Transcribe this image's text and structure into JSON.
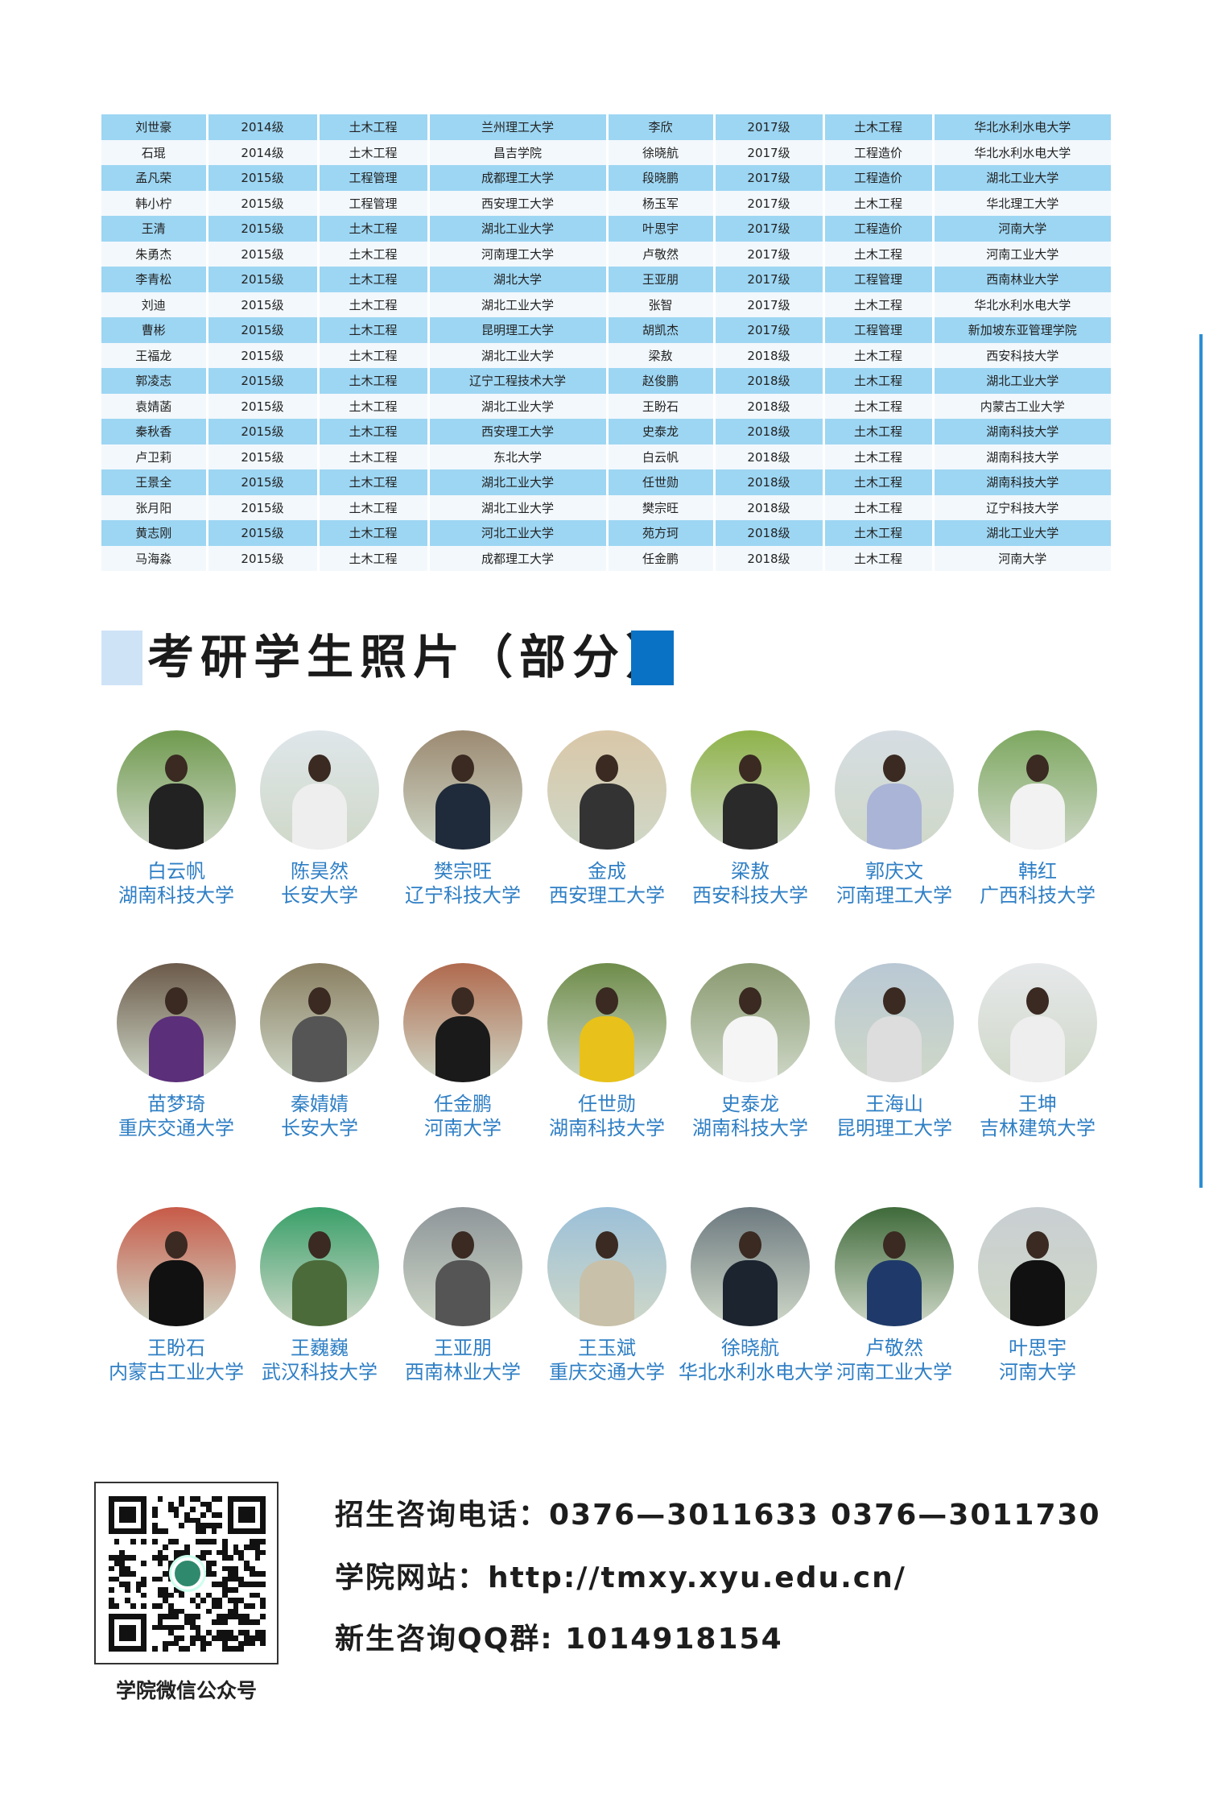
{
  "table": {
    "rows": [
      [
        "刘世豪",
        "2014级",
        "土木工程",
        "兰州理工大学",
        "李欣",
        "2017级",
        "土木工程",
        "华北水利水电大学"
      ],
      [
        "石琨",
        "2014级",
        "土木工程",
        "昌吉学院",
        "徐晓航",
        "2017级",
        "工程造价",
        "华北水利水电大学"
      ],
      [
        "孟凡荣",
        "2015级",
        "工程管理",
        "成都理工大学",
        "段晓鹏",
        "2017级",
        "工程造价",
        "湖北工业大学"
      ],
      [
        "韩小柠",
        "2015级",
        "工程管理",
        "西安理工大学",
        "杨玉军",
        "2017级",
        "土木工程",
        "华北理工大学"
      ],
      [
        "王清",
        "2015级",
        "土木工程",
        "湖北工业大学",
        "叶思宇",
        "2017级",
        "工程造价",
        "河南大学"
      ],
      [
        "朱勇杰",
        "2015级",
        "土木工程",
        "河南理工大学",
        "卢敬然",
        "2017级",
        "土木工程",
        "河南工业大学"
      ],
      [
        "李青松",
        "2015级",
        "土木工程",
        "湖北大学",
        "王亚朋",
        "2017级",
        "工程管理",
        "西南林业大学"
      ],
      [
        "刘迪",
        "2015级",
        "土木工程",
        "湖北工业大学",
        "张智",
        "2017级",
        "土木工程",
        "华北水利水电大学"
      ],
      [
        "曹彬",
        "2015级",
        "土木工程",
        "昆明理工大学",
        "胡凯杰",
        "2017级",
        "工程管理",
        "新加坡东亚管理学院"
      ],
      [
        "王福龙",
        "2015级",
        "土木工程",
        "湖北工业大学",
        "梁敖",
        "2018级",
        "土木工程",
        "西安科技大学"
      ],
      [
        "郭凌志",
        "2015级",
        "土木工程",
        "辽宁工程技术大学",
        "赵俊鹏",
        "2018级",
        "土木工程",
        "湖北工业大学"
      ],
      [
        "袁婧菡",
        "2015级",
        "土木工程",
        "湖北工业大学",
        "王盼石",
        "2018级",
        "土木工程",
        "内蒙古工业大学"
      ],
      [
        "秦秋香",
        "2015级",
        "土木工程",
        "西安理工大学",
        "史泰龙",
        "2018级",
        "土木工程",
        "湖南科技大学"
      ],
      [
        "卢卫莉",
        "2015级",
        "土木工程",
        "东北大学",
        "白云帆",
        "2018级",
        "土木工程",
        "湖南科技大学"
      ],
      [
        "王景全",
        "2015级",
        "土木工程",
        "湖北工业大学",
        "任世勋",
        "2018级",
        "土木工程",
        "湖南科技大学"
      ],
      [
        "张月阳",
        "2015级",
        "土木工程",
        "湖北工业大学",
        "樊宗旺",
        "2018级",
        "土木工程",
        "辽宁科技大学"
      ],
      [
        "黄志刚",
        "2015级",
        "土木工程",
        "河北工业大学",
        "苑方珂",
        "2018级",
        "土木工程",
        "湖北工业大学"
      ],
      [
        "马海淼",
        "2015级",
        "土木工程",
        "成都理工大学",
        "任金鹏",
        "2018级",
        "土木工程",
        "河南大学"
      ]
    ],
    "colors": {
      "stripe": "#9dd6f3",
      "alt": "#f3f8fc"
    }
  },
  "section": {
    "title": "考研学生照片（部分）",
    "accent_light": "#cfe3f7",
    "accent_dark": "#0a72c4"
  },
  "photos": [
    {
      "name": "白云帆",
      "school": "湖南科技大学"
    },
    {
      "name": "陈昊然",
      "school": "长安大学"
    },
    {
      "name": "樊宗旺",
      "school": "辽宁科技大学"
    },
    {
      "name": "金成",
      "school": "西安理工大学"
    },
    {
      "name": "梁敖",
      "school": "西安科技大学"
    },
    {
      "name": "郭庆文",
      "school": "河南理工大学"
    },
    {
      "name": "韩红",
      "school": "广西科技大学"
    },
    {
      "name": "苗梦琦",
      "school": "重庆交通大学"
    },
    {
      "name": "秦婧婧",
      "school": "长安大学"
    },
    {
      "name": "任金鹏",
      "school": "河南大学"
    },
    {
      "name": "任世勋",
      "school": "湖南科技大学"
    },
    {
      "name": "史泰龙",
      "school": "湖南科技大学"
    },
    {
      "name": "王海山",
      "school": "昆明理工大学"
    },
    {
      "name": "王坤",
      "school": "吉林建筑大学"
    },
    {
      "name": "王盼石",
      "school": "内蒙古工业大学"
    },
    {
      "name": "王巍巍",
      "school": "武汉科技大学"
    },
    {
      "name": "王亚朋",
      "school": "西南林业大学"
    },
    {
      "name": "王玉斌",
      "school": "重庆交通大学"
    },
    {
      "name": "徐晓航",
      "school": "华北水利水电大学"
    },
    {
      "name": "卢敬然",
      "school": "河南工业大学"
    },
    {
      "name": "叶思宇",
      "school": "河南大学"
    }
  ],
  "footer": {
    "qr_caption": "学院微信公众号",
    "phone": "招生咨询电话：0376—3011633  0376—3011730",
    "website": "学院网站：http://tmxy.xyu.edu.cn/",
    "qq": "新生咨询QQ群: 1014918154"
  }
}
